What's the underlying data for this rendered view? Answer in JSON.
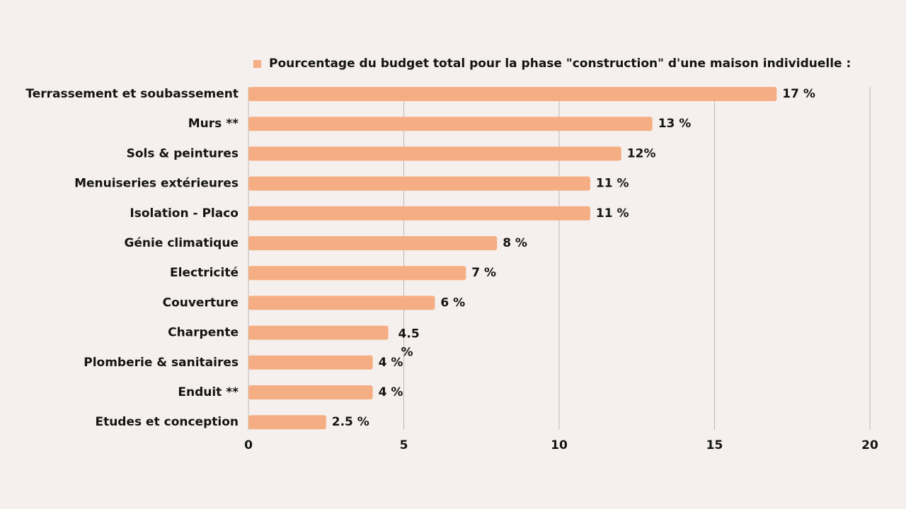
{
  "chart_data": {
    "type": "bar",
    "orientation": "horizontal",
    "legend": {
      "label": "Pourcentage du budget total pour la phase \"construction\" d'une maison individuelle :",
      "position": "top"
    },
    "categories": [
      "Terrassement et soubassement",
      "Murs **",
      "Sols & peintures",
      "Menuiseries extérieures",
      "Isolation - Placo",
      "Génie climatique",
      "Electricité",
      "Couverture",
      "Charpente",
      "Plomberie & sanitaires",
      "Enduit **",
      "Etudes et conception"
    ],
    "values": [
      17,
      13,
      12,
      11,
      11,
      8,
      7,
      6,
      4.5,
      4,
      4,
      2.5
    ],
    "data_labels": [
      "17 %",
      "13 %",
      "12%",
      "11 %",
      "11 %",
      "8 %",
      "7 %",
      "6 %",
      "4.5\n%",
      "4 %",
      "4 %",
      "2.5 %"
    ],
    "xlim": [
      0,
      20
    ],
    "xticks": [
      "0",
      "5",
      "10",
      "15",
      "20"
    ],
    "grid": true,
    "colors": {
      "bar": "#f5ae83",
      "grid": "#bdb8b5",
      "background": "#f5f0ed"
    }
  }
}
